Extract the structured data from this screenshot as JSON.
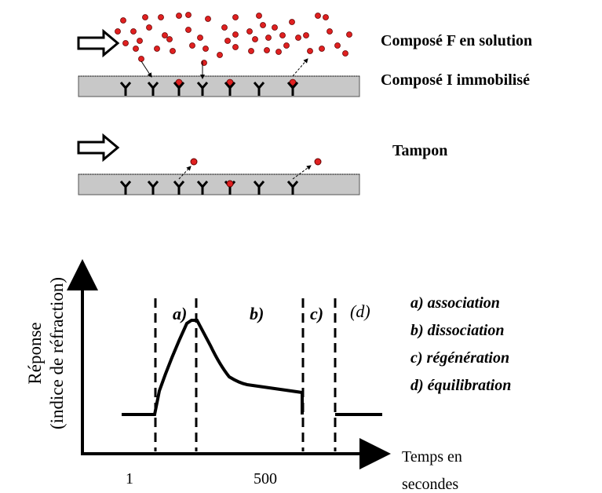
{
  "panel_solution": {
    "label_top": "Composé F en solution",
    "label_bottom": "Composé I immobilisé"
  },
  "panel_buffer": {
    "label": "Tampon"
  },
  "graph": {
    "y_label": [
      "Réponse",
      "(indice de réfraction)"
    ],
    "x_label": [
      "Temps en",
      "secondes"
    ],
    "x_ticks": [
      "1",
      "500"
    ],
    "phases": [
      "a)",
      "b)",
      "c)",
      "(d)"
    ],
    "legend": [
      "a) association",
      "b) dissociation",
      "c) régénération",
      "d) équilibration"
    ]
  }
}
